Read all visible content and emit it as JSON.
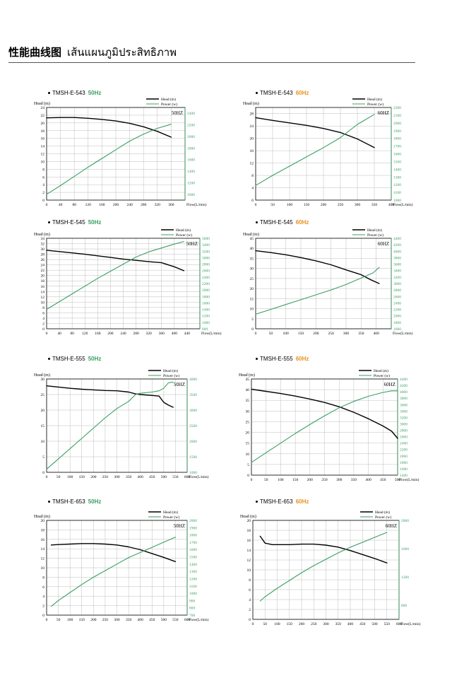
{
  "page": {
    "title": "性能曲线图",
    "title_thai": "เส้นแผนภูมิประสิทธิภาพ"
  },
  "colors": {
    "head": "#000000",
    "power": "#3a9f63",
    "freq50": "#3a9f63",
    "freq60": "#e8911f",
    "grid": "#bdbdbd"
  },
  "chart_data": [
    {
      "type": "line",
      "model": "TMSH-E-543",
      "freq": "50Hz",
      "hz_label": "50HZ",
      "title": "TMSH-E-543 50Hz",
      "ylabel": "Head",
      "ylabel_unit": "(m)",
      "xlabel": "Flow(L/min)",
      "legend": [
        "Head (m)",
        "Power (w)"
      ],
      "xlim": [
        0,
        400
      ],
      "xticks": [
        0,
        40,
        80,
        120,
        160,
        200,
        240,
        280,
        320,
        360
      ],
      "ylim": [
        0,
        24
      ],
      "yticks": [
        0,
        2,
        4,
        6,
        8,
        10,
        12,
        14,
        16,
        18,
        20,
        22,
        24
      ],
      "y2lim": [
        900,
        2500
      ],
      "y2ticks": [
        1000,
        1200,
        1400,
        1600,
        1800,
        2000,
        2200,
        2400
      ],
      "series": [
        {
          "name": "Head",
          "axis": "left",
          "x": [
            0,
            40,
            80,
            120,
            160,
            200,
            240,
            280,
            320,
            360
          ],
          "values": [
            21.3,
            21.4,
            21.4,
            21.2,
            20.9,
            20.5,
            19.9,
            19.0,
            17.8,
            16.3
          ]
        },
        {
          "name": "Power",
          "axis": "right",
          "x": [
            0,
            40,
            80,
            120,
            160,
            200,
            240,
            280,
            320,
            360
          ],
          "values": [
            1000,
            1150,
            1310,
            1470,
            1620,
            1770,
            1920,
            2040,
            2140,
            2210
          ]
        }
      ]
    },
    {
      "type": "line",
      "model": "TMSH-E-543",
      "freq": "60Hz",
      "hz_label": "60HZ",
      "title": "TMSH-E-543 60Hz",
      "ylabel": "Head",
      "ylabel_unit": "(m)",
      "xlabel": "Flow(L/min)",
      "legend": [
        "Head (m)",
        "Power (w)"
      ],
      "xlim": [
        0,
        400
      ],
      "xticks": [
        0,
        50,
        100,
        150,
        200,
        250,
        300,
        350,
        400
      ],
      "ylim": [
        0,
        30
      ],
      "yticks": [
        0,
        4,
        8,
        12,
        16,
        20,
        24,
        28
      ],
      "y2lim": [
        1000,
        2200
      ],
      "y2ticks": [
        1000,
        1100,
        1200,
        1300,
        1400,
        1500,
        1600,
        1700,
        1800,
        1900,
        2000,
        2100,
        2200
      ],
      "series": [
        {
          "name": "Head",
          "axis": "left",
          "x": [
            0,
            50,
            100,
            150,
            200,
            250,
            300,
            350
          ],
          "values": [
            26.7,
            25.8,
            25.0,
            24.2,
            23.2,
            21.9,
            19.8,
            17.0
          ]
        },
        {
          "name": "Power",
          "axis": "right",
          "x": [
            0,
            50,
            100,
            150,
            200,
            250,
            300,
            350
          ],
          "values": [
            1190,
            1320,
            1440,
            1560,
            1680,
            1810,
            1980,
            2110
          ]
        }
      ]
    },
    {
      "type": "line",
      "model": "TMSH-E-545",
      "freq": "50Hz",
      "hz_label": "50HZ",
      "title": "TMSH-E-545 50Hz",
      "ylabel": "Head",
      "ylabel_unit": "(m)",
      "xlabel": "Flow(L/min)",
      "legend": [
        "Head (m)",
        "Power (w)"
      ],
      "xlim": [
        0,
        480
      ],
      "xticks": [
        0,
        40,
        80,
        120,
        160,
        200,
        240,
        280,
        320,
        360,
        400,
        440
      ],
      "ylim": [
        0,
        34
      ],
      "yticks": [
        0,
        2,
        4,
        6,
        8,
        10,
        12,
        14,
        16,
        18,
        20,
        22,
        24,
        26,
        28,
        30,
        32,
        34
      ],
      "y2lim": [
        800,
        3600
      ],
      "y2ticks": [
        800,
        1000,
        1200,
        1400,
        1600,
        1800,
        2000,
        2200,
        2400,
        2600,
        2800,
        3000,
        3200,
        3400,
        3600
      ],
      "series": [
        {
          "name": "Head",
          "axis": "left",
          "x": [
            0,
            40,
            80,
            120,
            160,
            200,
            240,
            280,
            320,
            360,
            400,
            430
          ],
          "values": [
            29.5,
            29.0,
            28.5,
            28.0,
            27.4,
            26.8,
            26.2,
            25.7,
            25.2,
            24.8,
            23.3,
            21.8
          ]
        },
        {
          "name": "Power",
          "axis": "right",
          "x": [
            0,
            40,
            80,
            120,
            160,
            200,
            240,
            280,
            320,
            360,
            400,
            430
          ],
          "values": [
            1400,
            1640,
            1880,
            2120,
            2360,
            2580,
            2800,
            3020,
            3180,
            3300,
            3420,
            3500
          ]
        }
      ]
    },
    {
      "type": "line",
      "model": "TMSH-E-545",
      "freq": "60Hz",
      "hz_label": "60HZ",
      "title": "TMSH-E-545 60Hz",
      "ylabel": "Head",
      "ylabel_unit": "(m)",
      "xlabel": "Flow(L/min)",
      "legend": [
        "Head (m)",
        "Power (w)"
      ],
      "xlim": [
        0,
        450
      ],
      "xticks": [
        0,
        50,
        100,
        150,
        200,
        250,
        300,
        350,
        400
      ],
      "ylim": [
        0,
        45
      ],
      "yticks": [
        0,
        5,
        10,
        15,
        20,
        25,
        30,
        35,
        40,
        45
      ],
      "y2lim": [
        1600,
        4400
      ],
      "y2ticks": [
        1600,
        1800,
        2000,
        2200,
        2400,
        2600,
        2800,
        3000,
        3200,
        3400,
        3600,
        3800,
        4000,
        4200,
        4400
      ],
      "series": [
        {
          "name": "Head",
          "axis": "left",
          "x": [
            0,
            50,
            100,
            150,
            200,
            250,
            300,
            350,
            380,
            410
          ],
          "values": [
            38.8,
            37.9,
            36.8,
            35.4,
            33.8,
            31.8,
            29.3,
            26.9,
            24.5,
            22.5
          ]
        },
        {
          "name": "Power",
          "axis": "right",
          "x": [
            0,
            50,
            100,
            150,
            200,
            250,
            300,
            350,
            390,
            410
          ],
          "values": [
            2050,
            2200,
            2350,
            2500,
            2650,
            2800,
            2970,
            3170,
            3330,
            3500
          ]
        }
      ]
    },
    {
      "type": "line",
      "model": "TMSH-E-555",
      "freq": "50Hz",
      "hz_label": "50HZ",
      "title": "TMSH-E-555 50Hz",
      "ylabel": "Head",
      "ylabel_unit": "(m)",
      "xlabel": "Flow(L/min)",
      "legend": [
        "Head (m)",
        "Power (w)"
      ],
      "xlim": [
        0,
        600
      ],
      "xticks": [
        0,
        50,
        100,
        150,
        200,
        250,
        300,
        350,
        400,
        450,
        500,
        550,
        600
      ],
      "ylim": [
        0,
        30
      ],
      "yticks": [
        0,
        5,
        10,
        15,
        20,
        25,
        30
      ],
      "y2lim": [
        1000,
        4000
      ],
      "y2ticks": [
        1000,
        1500,
        2000,
        2500,
        3000,
        3500,
        4000
      ],
      "series": [
        {
          "name": "Head",
          "axis": "left",
          "x": [
            0,
            50,
            100,
            150,
            200,
            250,
            300,
            350,
            380,
            400,
            450,
            480,
            500,
            520,
            540
          ],
          "values": [
            27.8,
            27.4,
            27.0,
            26.7,
            26.5,
            26.3,
            26.2,
            25.8,
            25.2,
            25.0,
            24.7,
            24.5,
            22.5,
            21.6,
            20.9
          ]
        },
        {
          "name": "Power",
          "axis": "right",
          "x": [
            0,
            50,
            100,
            150,
            200,
            250,
            300,
            350,
            380,
            400,
            450,
            480,
            500,
            520,
            540
          ],
          "values": [
            1100,
            1430,
            1760,
            2090,
            2420,
            2750,
            3050,
            3280,
            3500,
            3540,
            3580,
            3620,
            3700,
            3880,
            3900
          ]
        }
      ]
    },
    {
      "type": "line",
      "model": "TMSH-E-555",
      "freq": "60Hz",
      "hz_label": "60HZ",
      "title": "TMSH-E-555 60Hz",
      "ylabel": "Head",
      "ylabel_unit": "(m)",
      "xlabel": "Flow(L/min)",
      "legend": [
        "Head (m)",
        "Power (w)"
      ],
      "xlim": [
        0,
        500
      ],
      "xticks": [
        0,
        50,
        100,
        150,
        200,
        250,
        300,
        350,
        400,
        450,
        500
      ],
      "ylim": [
        0,
        45
      ],
      "yticks": [
        0,
        5,
        10,
        15,
        20,
        25,
        30,
        35,
        40,
        45
      ],
      "y2lim": [
        1400,
        4400
      ],
      "y2ticks": [
        1400,
        1600,
        1800,
        2000,
        2200,
        2400,
        2600,
        2800,
        3000,
        3200,
        3400,
        3600,
        3800,
        4000,
        4200,
        4400
      ],
      "series": [
        {
          "name": "Head",
          "axis": "left",
          "x": [
            0,
            50,
            100,
            150,
            200,
            250,
            300,
            350,
            400,
            450,
            480,
            500
          ],
          "values": [
            40.2,
            39.2,
            38.2,
            37.0,
            35.6,
            34.0,
            32.0,
            29.4,
            26.4,
            23.0,
            20.5,
            17.2
          ]
        },
        {
          "name": "Power",
          "axis": "right",
          "x": [
            0,
            50,
            100,
            150,
            200,
            250,
            300,
            350,
            400,
            450,
            480,
            500
          ],
          "values": [
            1800,
            2100,
            2400,
            2700,
            2980,
            3250,
            3500,
            3700,
            3860,
            3980,
            4030,
            4030
          ]
        }
      ]
    },
    {
      "type": "line",
      "model": "TMSH-E-653",
      "freq": "50Hz",
      "hz_label": "50HZ",
      "title": "TMSH-E-653 50Hz",
      "ylabel": "Head",
      "ylabel_unit": "(m)",
      "xlabel": "Flow(L/min)",
      "legend": [
        "Head (m)",
        "Power (w)"
      ],
      "xlim": [
        0,
        600
      ],
      "xticks": [
        0,
        50,
        100,
        150,
        200,
        250,
        300,
        350,
        400,
        450,
        500,
        550,
        600
      ],
      "ylim": [
        0,
        20
      ],
      "yticks": [
        0,
        2,
        4,
        6,
        8,
        10,
        12,
        14,
        16,
        18,
        20
      ],
      "y2lim": [
        700,
        2000
      ],
      "y2ticks": [
        700,
        800,
        900,
        1000,
        1100,
        1200,
        1300,
        1400,
        1500,
        1600,
        1700,
        1800,
        1900,
        2000
      ],
      "series": [
        {
          "name": "Head",
          "axis": "left",
          "x": [
            20,
            50,
            100,
            150,
            200,
            250,
            300,
            350,
            400,
            450,
            500,
            550
          ],
          "values": [
            14.8,
            14.9,
            15.0,
            15.1,
            15.1,
            15.0,
            14.8,
            14.4,
            13.8,
            13.0,
            12.2,
            11.3
          ]
        },
        {
          "name": "Power",
          "axis": "right",
          "x": [
            20,
            50,
            100,
            150,
            200,
            250,
            300,
            350,
            400,
            450,
            500,
            550
          ],
          "values": [
            820,
            900,
            1010,
            1120,
            1220,
            1310,
            1400,
            1490,
            1560,
            1630,
            1700,
            1770
          ]
        }
      ]
    },
    {
      "type": "line",
      "model": "TMSH-E-653",
      "freq": "60Hz",
      "hz_label": "60HZ",
      "title": "TMSH-E-653 60Hz",
      "ylabel": "Head",
      "ylabel_unit": "(m)",
      "xlabel": "Flow(L/min)",
      "legend": [
        "Head (m)",
        "Power (w)"
      ],
      "xlim": [
        0,
        600
      ],
      "xticks": [
        0,
        50,
        100,
        150,
        200,
        250,
        300,
        350,
        400,
        450,
        500,
        550,
        600
      ],
      "ylim": [
        0,
        20
      ],
      "yticks": [
        0,
        2,
        4,
        6,
        8,
        10,
        12,
        14,
        16,
        18,
        20
      ],
      "y2lim": [
        600,
        2000
      ],
      "y2ticks": [
        800,
        1200,
        1600,
        2000
      ],
      "series": [
        {
          "name": "Head",
          "axis": "left",
          "x": [
            30,
            50,
            80,
            100,
            150,
            200,
            250,
            300,
            350,
            400,
            450,
            500,
            550
          ],
          "values": [
            16.8,
            15.4,
            15.1,
            15.1,
            15.1,
            15.2,
            15.2,
            15.0,
            14.6,
            13.9,
            13.1,
            12.3,
            11.4
          ]
        },
        {
          "name": "Power",
          "axis": "right",
          "x": [
            30,
            50,
            100,
            150,
            200,
            250,
            300,
            350,
            400,
            450,
            500,
            550
          ],
          "values": [
            860,
            920,
            1040,
            1150,
            1260,
            1360,
            1450,
            1540,
            1620,
            1690,
            1760,
            1830
          ]
        }
      ]
    }
  ]
}
